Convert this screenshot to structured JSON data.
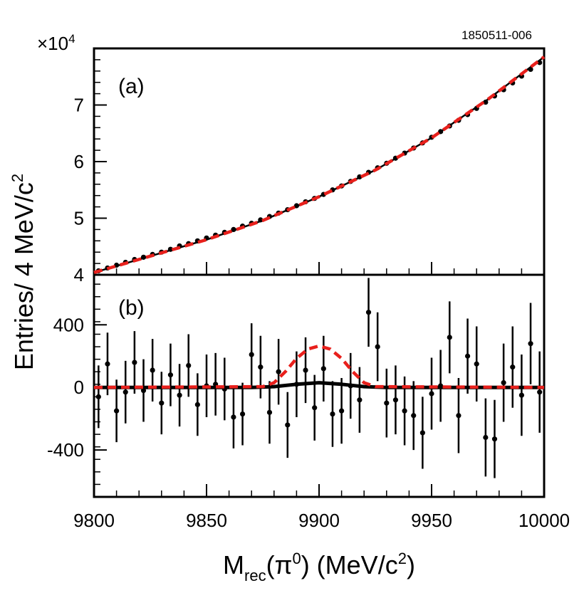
{
  "figure_id": "1850511-006",
  "chart_data": [
    {
      "panel_label": "(a)",
      "type": "scatter",
      "xlabel": "M_rec(π0) (MeV/c2)",
      "ylabel": "Entries/ 4 MeV/c2",
      "xlim": [
        9800,
        10000
      ],
      "ylim": [
        4,
        8
      ],
      "y_multiplier": "×10^4",
      "y_ticks": [
        4,
        5,
        6,
        7
      ],
      "x_ticks": [
        9800,
        9850,
        9900,
        9950,
        10000
      ],
      "grid": false,
      "series": [
        {
          "type": "scatter_errorbar",
          "color": "#000000",
          "x": [
            9802,
            9806,
            9810,
            9814,
            9818,
            9822,
            9826,
            9830,
            9834,
            9838,
            9842,
            9846,
            9850,
            9854,
            9858,
            9862,
            9866,
            9870,
            9874,
            9878,
            9882,
            9886,
            9890,
            9894,
            9898,
            9902,
            9906,
            9910,
            9914,
            9918,
            9922,
            9926,
            9930,
            9934,
            9938,
            9942,
            9946,
            9950,
            9954,
            9958,
            9962,
            9966,
            9970,
            9974,
            9978,
            9982,
            9986,
            9990,
            9994,
            9998
          ],
          "y": [
            4.07,
            4.12,
            4.17,
            4.22,
            4.27,
            4.31,
            4.36,
            4.4,
            4.45,
            4.51,
            4.55,
            4.6,
            4.65,
            4.7,
            4.75,
            4.8,
            4.86,
            4.91,
            4.97,
            5.03,
            5.09,
            5.15,
            5.22,
            5.29,
            5.35,
            5.42,
            5.5,
            5.57,
            5.65,
            5.73,
            5.81,
            5.89,
            5.97,
            6.06,
            6.15,
            6.24,
            6.33,
            6.43,
            6.53,
            6.63,
            6.73,
            6.83,
            6.94,
            7.05,
            7.16,
            7.27,
            7.39,
            7.51,
            7.63,
            7.75
          ]
        },
        {
          "type": "line",
          "style": "solid",
          "color": "#000000",
          "x": [
            9800,
            9825,
            9850,
            9875,
            9900,
            9925,
            9950,
            9975,
            10000
          ],
          "y": [
            4.04,
            4.33,
            4.62,
            4.96,
            5.38,
            5.85,
            6.42,
            7.1,
            7.85
          ]
        },
        {
          "type": "line",
          "style": "dashed",
          "color": "#e8201c",
          "x": [
            9800,
            9825,
            9850,
            9875,
            9900,
            9925,
            9950,
            9975,
            10000
          ],
          "y": [
            4.04,
            4.33,
            4.62,
            4.96,
            5.38,
            5.85,
            6.42,
            7.1,
            7.85
          ]
        }
      ]
    },
    {
      "panel_label": "(b)",
      "type": "scatter",
      "xlabel": "M_rec(π0) (MeV/c2)",
      "ylabel": "Entries/ 4 MeV/c2",
      "xlim": [
        9800,
        10000
      ],
      "ylim": [
        -700,
        720
      ],
      "y_ticks": [
        -400,
        0,
        400
      ],
      "x_ticks": [
        9800,
        9850,
        9900,
        9950,
        10000
      ],
      "grid": false,
      "series": [
        {
          "type": "scatter_errorbar",
          "color": "#000000",
          "x": [
            9802,
            9806,
            9810,
            9814,
            9818,
            9822,
            9826,
            9830,
            9834,
            9838,
            9842,
            9846,
            9850,
            9854,
            9858,
            9862,
            9866,
            9870,
            9874,
            9878,
            9882,
            9886,
            9890,
            9894,
            9898,
            9902,
            9906,
            9910,
            9914,
            9918,
            9922,
            9926,
            9930,
            9934,
            9938,
            9942,
            9946,
            9950,
            9954,
            9958,
            9962,
            9966,
            9970,
            9974,
            9978,
            9982,
            9986,
            9990,
            9994,
            9998
          ],
          "y": [
            -60,
            150,
            -150,
            -30,
            160,
            -20,
            110,
            -100,
            80,
            -50,
            140,
            -110,
            10,
            20,
            -10,
            -190,
            -170,
            210,
            130,
            -160,
            100,
            -240,
            20,
            110,
            -130,
            120,
            -170,
            -150,
            10,
            -80,
            480,
            260,
            -100,
            -80,
            -150,
            -180,
            -290,
            -40,
            10,
            320,
            -180,
            200,
            150,
            -320,
            -330,
            30,
            130,
            -50,
            280,
            -30
          ],
          "yerr": [
            200,
            200,
            200,
            200,
            200,
            200,
            200,
            200,
            200,
            200,
            200,
            200,
            200,
            200,
            200,
            200,
            200,
            200,
            200,
            200,
            210,
            210,
            210,
            210,
            210,
            210,
            210,
            210,
            210,
            210,
            220,
            220,
            220,
            220,
            220,
            220,
            230,
            230,
            230,
            230,
            240,
            240,
            240,
            250,
            250,
            250,
            260,
            260,
            260,
            260
          ]
        },
        {
          "type": "line",
          "style": "solid",
          "color": "#000000",
          "x": [
            9800,
            9870,
            9880,
            9890,
            9900,
            9910,
            9920,
            9930,
            10000
          ],
          "y": [
            0,
            0,
            5,
            20,
            30,
            20,
            5,
            0,
            0
          ]
        },
        {
          "type": "line",
          "style": "dashed",
          "color": "#e8201c",
          "x": [
            9800,
            9875,
            9880,
            9885,
            9890,
            9895,
            9900,
            9905,
            9910,
            9915,
            9920,
            9925,
            10000
          ],
          "y": [
            0,
            5,
            30,
            100,
            185,
            245,
            265,
            245,
            185,
            100,
            30,
            5,
            0
          ]
        }
      ]
    }
  ]
}
